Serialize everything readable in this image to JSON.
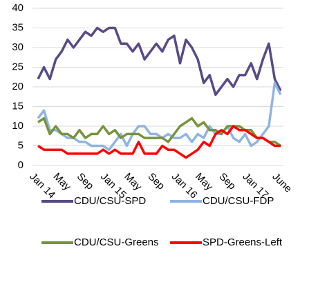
{
  "chart_data": {
    "type": "line",
    "categories": [
      "Jan 14",
      null,
      null,
      null,
      "May",
      null,
      null,
      null,
      "Sep",
      null,
      null,
      null,
      "Jan 15",
      null,
      null,
      null,
      "May",
      null,
      null,
      null,
      "Sep",
      null,
      null,
      null,
      "Jan 16",
      null,
      null,
      null,
      "May",
      null,
      null,
      null,
      "Sep",
      null,
      null,
      null,
      "Jan 17",
      null,
      null,
      null,
      null,
      "June"
    ],
    "series": [
      {
        "name": "CDU/CSU-SPD",
        "color": "#584a86",
        "values": [
          22,
          25,
          22,
          27,
          29,
          32,
          30,
          32,
          34,
          33,
          35,
          34,
          35,
          35,
          31,
          31,
          29,
          31,
          27,
          29,
          31,
          29,
          32,
          33,
          26,
          32,
          30,
          27,
          21,
          23,
          18,
          20,
          22,
          20,
          23,
          23,
          26,
          22,
          27,
          31,
          22,
          19
        ]
      },
      {
        "name": "CDU/CSU-FDP",
        "color": "#8fb4e3",
        "values": [
          12,
          14,
          9,
          9,
          8,
          7,
          7,
          6,
          6,
          5,
          5,
          5,
          4,
          6,
          8,
          5,
          8,
          10,
          10,
          8,
          8,
          7,
          8,
          7,
          7,
          8,
          6,
          8,
          7,
          10,
          8,
          8,
          10,
          7,
          6,
          8,
          5,
          6,
          8,
          10,
          21,
          18
        ]
      },
      {
        "name": "CDU/CSU-Greens",
        "color": "#77933c",
        "values": [
          11,
          12,
          8,
          10,
          8,
          8,
          7,
          9,
          7,
          8,
          8,
          10,
          8,
          9,
          7,
          8,
          8,
          8,
          7,
          7,
          7,
          7,
          6,
          8,
          10,
          11,
          12,
          10,
          11,
          9,
          9,
          8,
          10,
          10,
          10,
          9,
          9,
          7,
          7,
          6,
          6,
          5
        ]
      },
      {
        "name": "SPD-Greens-Left",
        "color": "#ff0000",
        "values": [
          5,
          4,
          4,
          4,
          4,
          3,
          3,
          3,
          3,
          3,
          3,
          4,
          3,
          4,
          3,
          3,
          3,
          6,
          3,
          3,
          3,
          5,
          4,
          4,
          3,
          2,
          3,
          4,
          6,
          5,
          8,
          9,
          8,
          10,
          9,
          9,
          8,
          7,
          7,
          6,
          5,
          5
        ]
      }
    ],
    "ylim": [
      0,
      40
    ],
    "yticks": [
      0,
      5,
      10,
      15,
      20,
      25,
      30,
      35,
      40
    ],
    "grid": true
  }
}
